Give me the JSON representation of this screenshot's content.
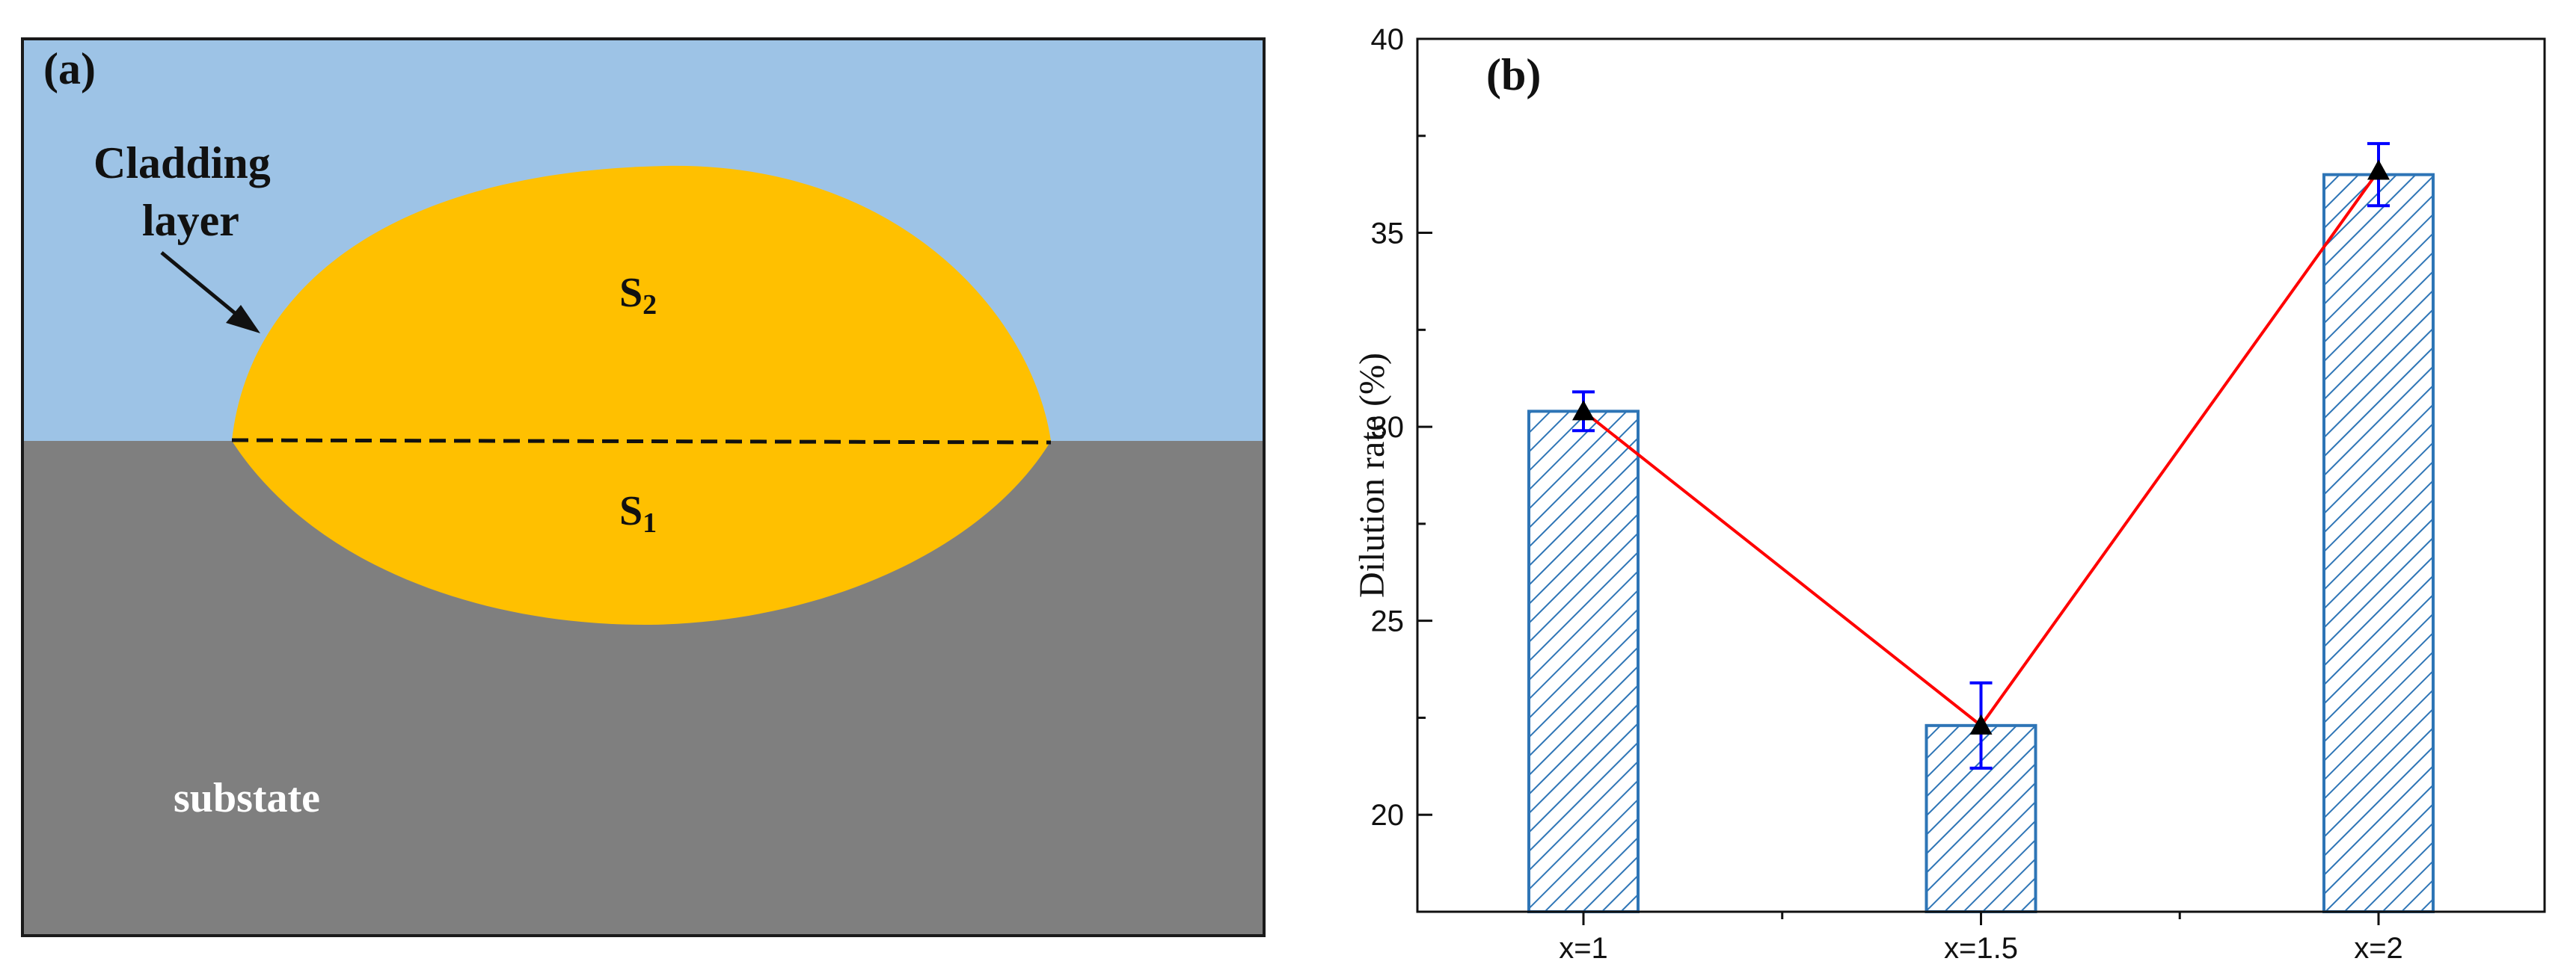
{
  "panel_a": {
    "label": "(a)",
    "cladding_label_line1": "Cladding",
    "cladding_label_line2": "layer",
    "s2_main": "S",
    "s2_sub": "2",
    "s1_main": "S",
    "s1_sub": "1",
    "substrate_label": "substate",
    "colors": {
      "upper_background": "#9dc3e6",
      "substrate": "#7f7f7f",
      "cladding": "#ffc000",
      "frame": "#1a1a1a"
    }
  },
  "chart_data": {
    "type": "bar",
    "panel_label": "(b)",
    "categories": [
      "x=1",
      "x=1.5",
      "x=2"
    ],
    "values": [
      30.4,
      22.3,
      36.5
    ],
    "error_bars": [
      0.5,
      1.1,
      0.8
    ],
    "line_points": [
      30.4,
      22.3,
      36.6
    ],
    "ylabel": "Dilution rate (%)",
    "xlabel": "",
    "ylim": [
      17.5,
      40
    ],
    "yticks": [
      20,
      25,
      30,
      35,
      40
    ],
    "y_tick_labels": [
      "20",
      "25",
      "30",
      "35",
      "40"
    ],
    "colors": {
      "bar_edge": "#2e75b6",
      "bar_hatch": "#2e75b6",
      "line": "#ff0000",
      "error_bar": "#0000ff",
      "marker": "#000000"
    }
  }
}
